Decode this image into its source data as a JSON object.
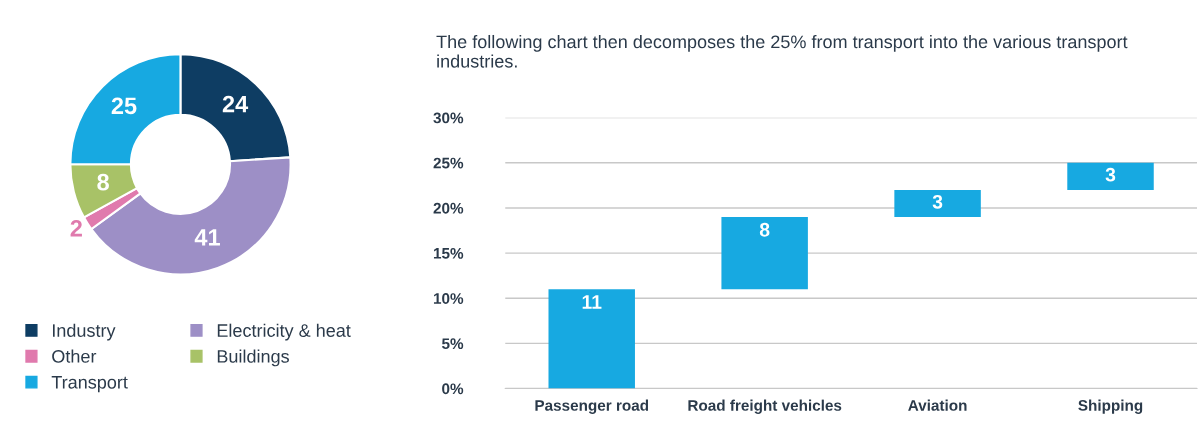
{
  "chart_data": [
    {
      "type": "donut",
      "categories": [
        "Industry",
        "Electricity & heat",
        "Other",
        "Buildings",
        "Transport"
      ],
      "values": [
        24,
        41,
        2,
        8,
        25
      ],
      "colors": [
        "#0e3d63",
        "#9d8fc6",
        "#e07aad",
        "#a8c267",
        "#17a9e1"
      ],
      "data_labels": true,
      "legend": "bottom"
    },
    {
      "type": "bar",
      "title": "The following chart then decomposes the 25% from transport into the various transport industries.",
      "categories": [
        "Passenger road",
        "Road freight vehicles",
        "Aviation",
        "Shipping"
      ],
      "values": [
        11,
        8,
        3,
        3
      ],
      "base": [
        0,
        11,
        19,
        22
      ],
      "color": "#17a9e1",
      "data_labels": true,
      "ylim": [
        0,
        30
      ],
      "yticks": [
        {
          "value": 0,
          "label": "0%"
        },
        {
          "value": 5,
          "label": "5%"
        },
        {
          "value": 10,
          "label": "10%"
        },
        {
          "value": 15,
          "label": "15%"
        },
        {
          "value": 20,
          "label": "20%"
        },
        {
          "value": 25,
          "label": "25%"
        },
        {
          "value": 30,
          "label": "30%"
        }
      ],
      "grid": "y"
    }
  ]
}
